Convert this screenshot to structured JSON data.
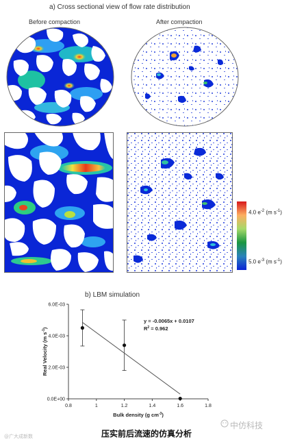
{
  "figure": {
    "panel_a_title": "a) Cross sectional view of flow rate distribution",
    "before_label": "Before compaction",
    "after_label": "After compaction",
    "colorbar_max": "4.0 e",
    "colorbar_max_exp": "-2",
    "colorbar_max_unit": "(m s",
    "colorbar_max_unit_exp": "-1",
    "colorbar_max_close": ")",
    "colorbar_min": "5.0 e",
    "colorbar_min_exp": "-3",
    "colorbar_min_unit": "(m s",
    "colorbar_min_unit_exp": "-1",
    "colorbar_min_close": ")",
    "colorbar_colors": [
      "#d7191c",
      "#fdae61",
      "#a6d96a",
      "#1a9641",
      "#2b83ba",
      "#0a23d6"
    ],
    "panel_b_title": "b) LBM simulation"
  },
  "caption": "压实前后流速的仿真分析",
  "watermark_left": "@广大成新数",
  "watermark_right": "中仿科技",
  "chart_data": {
    "type": "scatter",
    "title": "",
    "xlabel": "Bulk density",
    "xlabel_unit": "(g cm",
    "xlabel_unit_exp": "-3",
    "xlabel_unit_close": ")",
    "ylabel": "Real Velocity",
    "ylabel_unit": "(m s",
    "ylabel_unit_exp": "-1",
    "ylabel_unit_close": ")",
    "xlim": [
      0.8,
      1.8
    ],
    "ylim": [
      0,
      0.006
    ],
    "xticks": [
      0.8,
      1,
      1.2,
      1.4,
      1.6,
      1.8
    ],
    "xtick_labels": [
      "0.8",
      "1",
      "1.2",
      "1.4",
      "1.6",
      "1.8"
    ],
    "yticks": [
      0,
      0.002,
      0.004,
      0.006
    ],
    "ytick_labels": [
      "0.0E+00",
      "2.0E-03",
      "4.0E-03",
      "6.0E-03"
    ],
    "points": [
      {
        "x": 0.9,
        "y": 0.0045,
        "err": 0.00115
      },
      {
        "x": 1.2,
        "y": 0.0034,
        "err": 0.0016
      },
      {
        "x": 1.6,
        "y": 2e-05,
        "err": 0
      }
    ],
    "fit_line": {
      "x": [
        0.9,
        1.6
      ],
      "y": [
        0.00485,
        0.0003
      ]
    },
    "equation": "y = -0.0065x + 0.0107",
    "r2_label": "R",
    "r2_exp": "2",
    "r2_value": " = 0.962",
    "grid": false,
    "legend": false
  }
}
